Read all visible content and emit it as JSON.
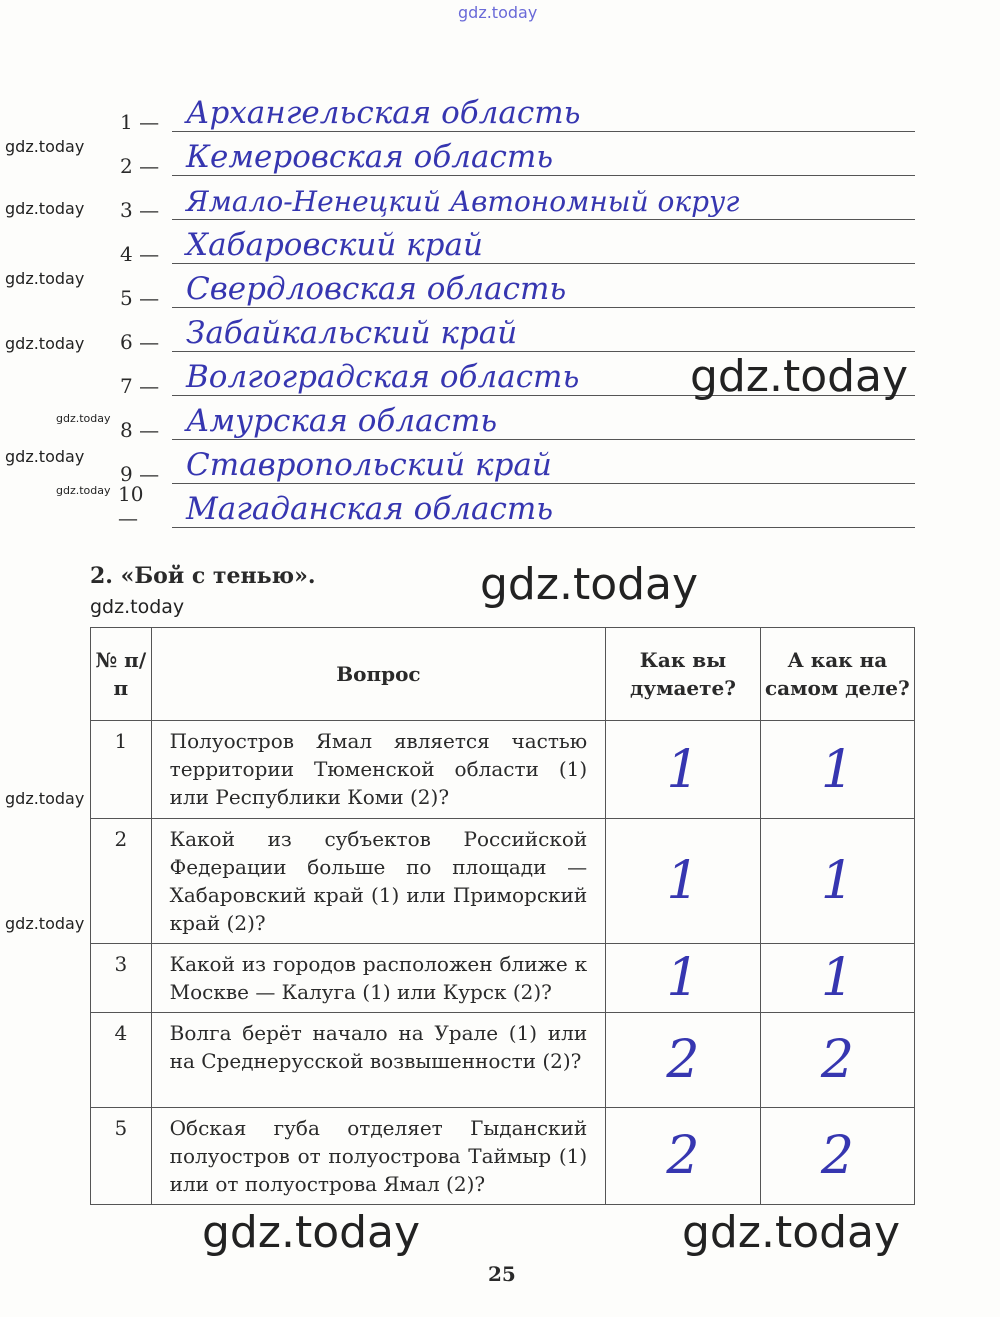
{
  "watermark": "gdz.today",
  "list": [
    {
      "num": "1 —",
      "answer": "Архангельская область"
    },
    {
      "num": "2 —",
      "answer": "Кемеровская область"
    },
    {
      "num": "3 —",
      "answer": "Ямало-Ненецкий Автономный округ"
    },
    {
      "num": "4 —",
      "answer": "Хабаровский край"
    },
    {
      "num": "5 —",
      "answer": "Свердловская область"
    },
    {
      "num": "6 —",
      "answer": "Забайкальский край"
    },
    {
      "num": "7 —",
      "answer": "Волгоградская область"
    },
    {
      "num": "8 —",
      "answer": "Амурская область"
    },
    {
      "num": "9 —",
      "answer": "Ставропольский край"
    },
    {
      "num": "10 —",
      "answer": "Магаданская область"
    }
  ],
  "task_title": "2. «Бой с тенью».",
  "table": {
    "headers": [
      "№ п/п",
      "Вопрос",
      "Как вы думаете?",
      "А как на самом деле?"
    ],
    "rows": [
      {
        "n": "1",
        "q": "Полуостров Ямал является частью территории Тюменской области (1) или Республики Коми (2)?",
        "guess": "1",
        "actual": "1"
      },
      {
        "n": "2",
        "q": "Какой из субъектов Российской Федерации больше по площади — Хабаровский край (1) или Приморский край (2)?",
        "guess": "1",
        "actual": "1"
      },
      {
        "n": "3",
        "q": "Какой из городов расположен ближе к Москве — Калуга (1) или Курск (2)?",
        "guess": "1",
        "actual": "1"
      },
      {
        "n": "4",
        "q": "Волга берёт начало на Урале (1) или на Среднерусской возвышенности (2)?",
        "guess": "2",
        "actual": "2"
      },
      {
        "n": "5",
        "q": "Обская губа отделяет Гыданский полуостров от полуострова Таймыр (1) или от полуострова Ямал (2)?",
        "guess": "2",
        "actual": "2"
      }
    ]
  },
  "page_number": "25",
  "colors": {
    "ink": "#3636b0",
    "print": "#2a2a2a"
  }
}
